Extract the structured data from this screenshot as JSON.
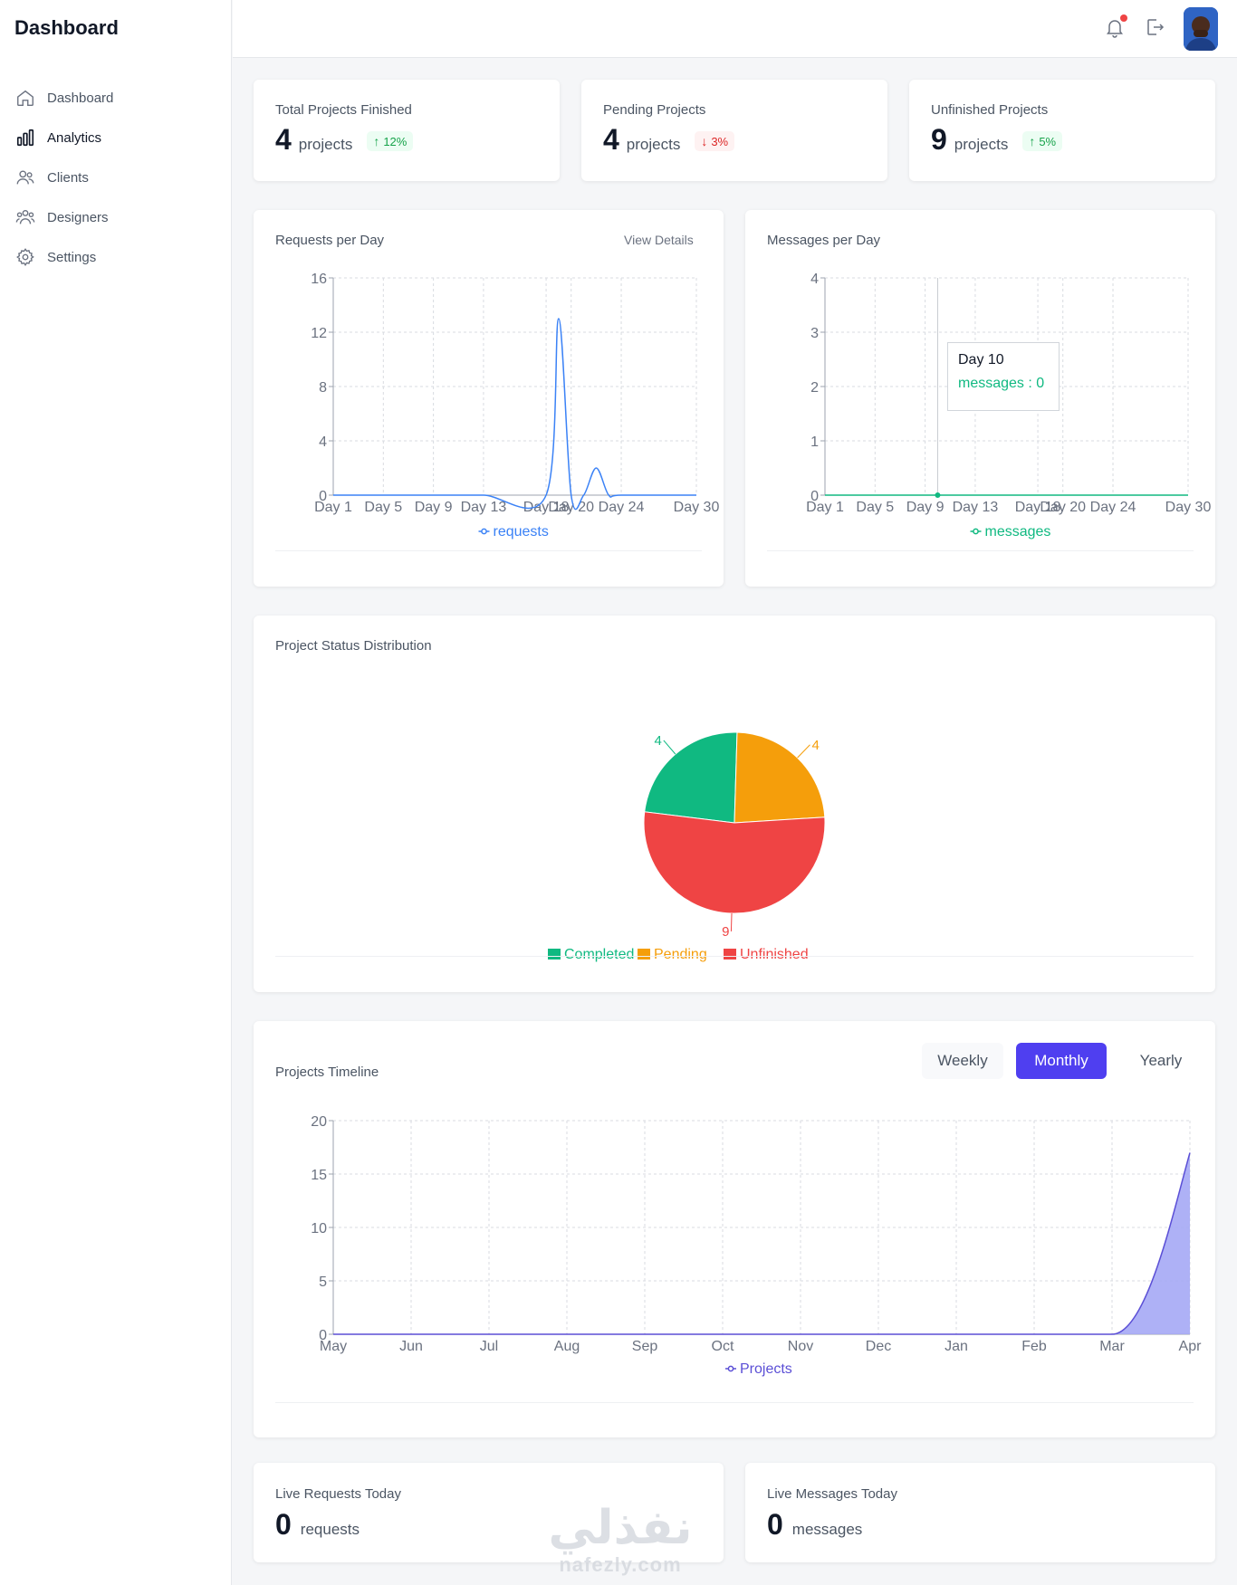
{
  "sidebar": {
    "brand": "Dashboard",
    "items": [
      {
        "label": "Dashboard",
        "icon": "home-icon"
      },
      {
        "label": "Analytics",
        "icon": "bar-chart-icon",
        "active": true
      },
      {
        "label": "Clients",
        "icon": "users-icon"
      },
      {
        "label": "Designers",
        "icon": "group-icon"
      },
      {
        "label": "Settings",
        "icon": "gear-icon"
      }
    ]
  },
  "topbar": {
    "icons": [
      "bell-icon",
      "logout-icon",
      "avatar"
    ],
    "notification_dot_color": "#ef4444"
  },
  "stats": [
    {
      "title": "Total Projects Finished",
      "value": "4",
      "unit": "projects",
      "change": "12%",
      "direction": "up"
    },
    {
      "title": "Pending Projects",
      "value": "4",
      "unit": "projects",
      "change": "3%",
      "direction": "down"
    },
    {
      "title": "Unfinished Projects",
      "value": "9",
      "unit": "projects",
      "change": "5%",
      "direction": "up"
    }
  ],
  "requests_card": {
    "title": "Requests per Day",
    "link": "View Details",
    "legend": "requests"
  },
  "messages_card": {
    "title": "Messages per Day",
    "legend": "messages",
    "tooltip": {
      "title": "Day 10",
      "label": "messages : 0"
    }
  },
  "status_card": {
    "title": "Project Status Distribution",
    "legend": [
      "Completed",
      "Pending",
      "Unfinished"
    ],
    "slice_labels": [
      "4",
      "4",
      "9"
    ]
  },
  "timeline_card": {
    "title": "Projects Timeline",
    "tabs": [
      "Weekly",
      "Monthly",
      "Yearly"
    ],
    "active_tab": "Monthly",
    "legend": "Projects"
  },
  "live": [
    {
      "title": "Live Requests Today",
      "value": "0",
      "unit": "requests"
    },
    {
      "title": "Live Messages Today",
      "value": "0",
      "unit": "messages"
    }
  ],
  "watermark": {
    "arabic": "نفذلي",
    "latin": "nafezly.com"
  },
  "colors": {
    "accent": "#4f3ff0",
    "requests_line": "#3b82f6",
    "messages_line": "#10b981",
    "completed": "#10b981",
    "pending": "#f59e0b",
    "unfinished": "#ef4444",
    "projects_area": "#a5a8f5",
    "projects_line": "#5b4fd6"
  },
  "chart_data": [
    {
      "type": "line",
      "title": "Requests per Day",
      "xlabel": "",
      "ylabel": "",
      "x_ticks": [
        "Day 1",
        "Day 5",
        "Day 9",
        "Day 13",
        "Day 18",
        "Day 20",
        "Day 24",
        "Day 30"
      ],
      "ylim": [
        0,
        16
      ],
      "y_ticks": [
        0,
        4,
        8,
        12,
        16
      ],
      "grid": true,
      "legend": "bottom",
      "series": [
        {
          "name": "requests",
          "x": [
            1,
            5,
            9,
            13,
            18,
            19,
            20,
            21,
            22,
            23,
            24,
            30
          ],
          "values": [
            0,
            0,
            0,
            0,
            0,
            13,
            0,
            0,
            2,
            0,
            0,
            0
          ]
        }
      ]
    },
    {
      "type": "line",
      "title": "Messages per Day",
      "xlabel": "",
      "ylabel": "",
      "x_ticks": [
        "Day 1",
        "Day 5",
        "Day 9",
        "Day 13",
        "Day 18",
        "Day 20",
        "Day 24",
        "Day 30"
      ],
      "ylim": [
        0,
        4
      ],
      "y_ticks": [
        0,
        1,
        2,
        3,
        4
      ],
      "grid": true,
      "legend": "bottom",
      "series": [
        {
          "name": "messages",
          "x": [
            1,
            5,
            9,
            10,
            13,
            18,
            20,
            24,
            30
          ],
          "values": [
            0,
            0,
            0,
            0,
            0,
            0,
            0,
            0,
            0
          ]
        }
      ]
    },
    {
      "type": "pie",
      "title": "Project Status Distribution",
      "categories": [
        "Completed",
        "Pending",
        "Unfinished"
      ],
      "values": [
        4,
        4,
        9
      ],
      "legend": "bottom"
    },
    {
      "type": "area",
      "title": "Projects Timeline",
      "xlabel": "",
      "ylabel": "",
      "categories": [
        "May",
        "Jun",
        "Jul",
        "Aug",
        "Sep",
        "Oct",
        "Nov",
        "Dec",
        "Jan",
        "Feb",
        "Mar",
        "Apr"
      ],
      "ylim": [
        0,
        20
      ],
      "y_ticks": [
        0,
        5,
        10,
        15,
        20
      ],
      "grid": true,
      "legend": "bottom",
      "series": [
        {
          "name": "Projects",
          "values": [
            0,
            0,
            0,
            0,
            0,
            0,
            0,
            0,
            0,
            0,
            0,
            17
          ]
        }
      ]
    }
  ]
}
